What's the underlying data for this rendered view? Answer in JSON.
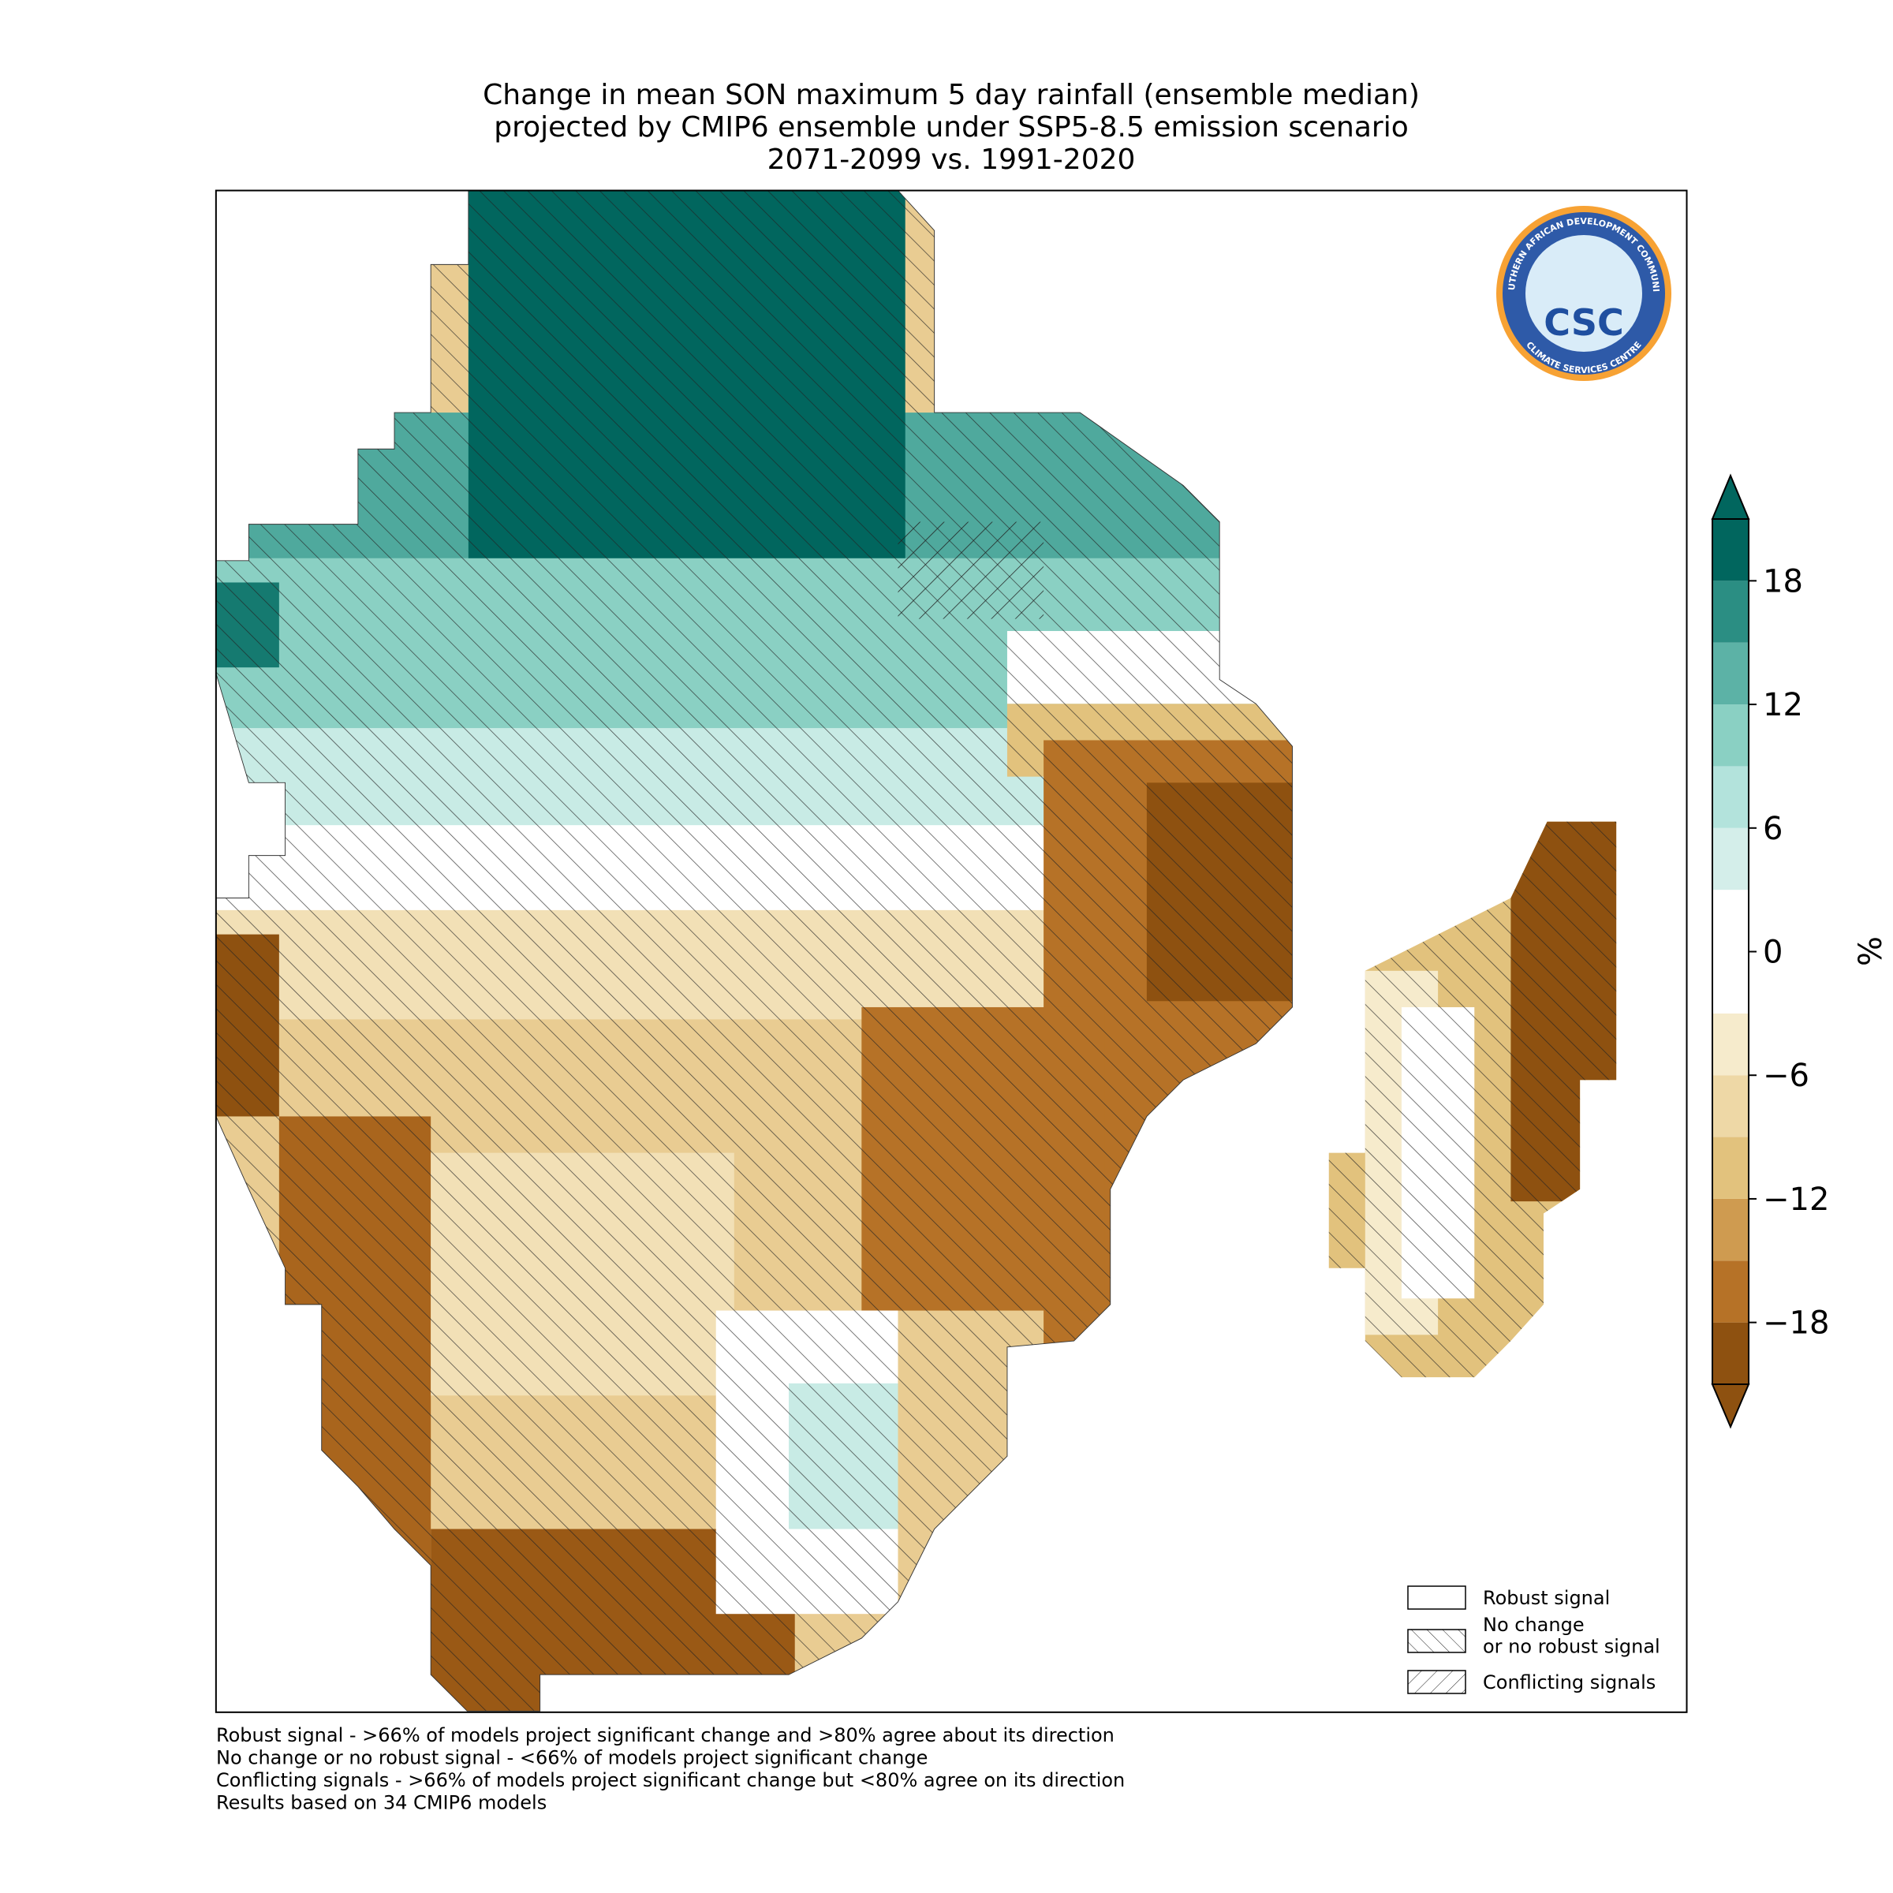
{
  "title": [
    "Change in mean SON maximum 5 day rainfall (ensemble median)",
    "projected by CMIP6 ensemble under SSP5-8.5 emission scenario",
    "2071-2099 vs. 1991-2020"
  ],
  "colorbar": {
    "label": "%",
    "lim": [
      -21,
      21
    ],
    "ticks": [
      {
        "value": -18,
        "label": "−18"
      },
      {
        "value": -12,
        "label": "−12"
      },
      {
        "value": -6,
        "label": "−6"
      },
      0,
      6,
      12,
      18
    ],
    "colors": [
      "#8e5110",
      "#b67227",
      "#cf9b50",
      "#e2c27d",
      "#eed8a6",
      "#f6ebcc",
      "#ffffff",
      "#ffffff",
      "#d4eeea",
      "#b3e3dc",
      "#8ad0c3",
      "#5cb2a6",
      "#2b8e83",
      "#01665e"
    ]
  },
  "legend": [
    "Robust signal",
    "No change\nor no robust signal",
    "Conflicting signals"
  ],
  "footnotes": [
    "Robust signal - >66% of models project significant change and >80% agree about its direction",
    "No change or no robust signal - <66% of models project significant change",
    "Conflicting signals - >66% of models project significant change but <80% agree on its direction",
    "Results based on 34 CMIP6 models"
  ],
  "logo": {
    "top": "SOUTHERN AFRICAN DEVELOPMENT COMMUNITY",
    "bottom": "CLIMATE SERVICES CENTRE",
    "name": "CSC"
  }
}
